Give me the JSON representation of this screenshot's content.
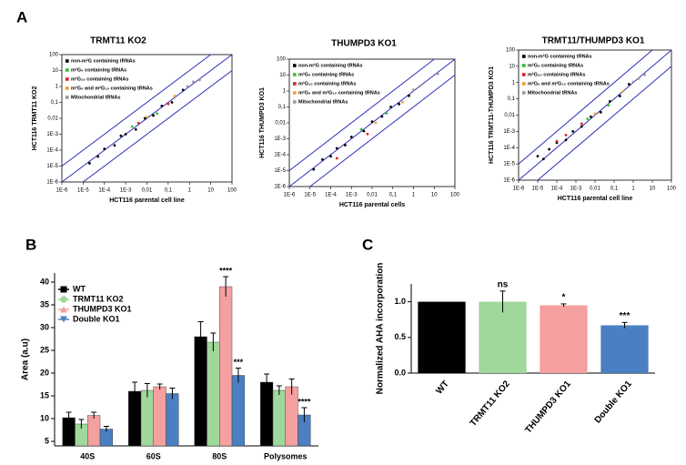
{
  "chart_data": [
    {
      "type": "scatter",
      "panel": "A",
      "title": "TRMT11 KO2",
      "title_color": "#8fd18a",
      "x_label": "HCT116 parental cell line",
      "y_label": "HCT116 TRMT11 KO2",
      "log_x": true,
      "log_y": true,
      "xlim": [
        1e-06,
        100
      ],
      "ylim": [
        1e-06,
        100
      ],
      "xticks": [
        {
          "value": 1e-06,
          "label": "1E-6"
        },
        {
          "value": 1e-05,
          "label": "1E-5"
        },
        {
          "value": 0.0001,
          "label": "1E-4"
        },
        {
          "value": 0.001,
          "label": "1E-3"
        },
        {
          "value": 0.01,
          "label": "0,01"
        },
        {
          "value": 0.1,
          "label": "0,1"
        },
        1,
        10,
        100
      ],
      "yticks": [
        {
          "value": 1e-06,
          "label": "1E-6"
        },
        {
          "value": 1e-05,
          "label": "1E-5"
        },
        {
          "value": 0.0001,
          "label": "1E-4"
        },
        {
          "value": 0.001,
          "label": "1E-3"
        },
        {
          "value": 0.01,
          "label": "0,01"
        },
        {
          "value": 0.1,
          "label": "0,1"
        },
        1,
        10,
        100
      ],
      "ref_lines": [
        0.1,
        1,
        10
      ],
      "ref_color": "#2b2fb8",
      "series": [
        {
          "name": "non-m²G containing tRNAs",
          "color": "#000000",
          "x": [
            2e-05,
            5e-05,
            0.0001,
            0.0003,
            0.0006,
            0.001,
            0.003,
            0.008,
            0.02,
            0.05,
            0.15,
            0.5
          ],
          "values": [
            1.5e-05,
            4e-05,
            0.00012,
            0.0002,
            0.0008,
            0.001,
            0.002,
            0.01,
            0.015,
            0.06,
            0.1,
            0.6
          ]
        },
        {
          "name": "m²G₆ containing tRNAs",
          "color": "#2fc02f",
          "x": [
            0.002,
            0.03
          ],
          "values": [
            0.003,
            0.02
          ]
        },
        {
          "name": "m²G₁₀ containing tRNAs",
          "color": "#e02020",
          "x": [
            0.004,
            0.1
          ],
          "values": [
            0.005,
            0.08
          ]
        },
        {
          "name": "m²G₆ and m²G₁₀ containing tRNAs",
          "color": "#f0a020",
          "x": [
            0.01,
            0.2
          ],
          "values": [
            0.012,
            0.25
          ]
        },
        {
          "name": "Mitochondrial tRNAs",
          "color": "#9a9a9a",
          "x": [
            0.8,
            1.5,
            3
          ],
          "values": [
            1,
            2,
            2.5
          ]
        }
      ]
    },
    {
      "type": "scatter",
      "title": "THUMPD3 KO1",
      "title_color": "#f29a9a",
      "x_label": "HCT116 parental cells",
      "y_label": "HCT116 THUMPD3 KO1",
      "log_x": true,
      "log_y": true,
      "xlim": [
        1e-06,
        100
      ],
      "ylim": [
        1e-06,
        100
      ],
      "xticks": [
        {
          "value": 1e-06,
          "label": "1E-6"
        },
        {
          "value": 1e-05,
          "label": "1E-5"
        },
        {
          "value": 0.0001,
          "label": "1E-4"
        },
        {
          "value": 0.001,
          "label": "1E-3"
        },
        {
          "value": 0.01,
          "label": "0,01"
        },
        {
          "value": 0.1,
          "label": "0,1"
        },
        1,
        10,
        100
      ],
      "yticks": [
        {
          "value": 1e-06,
          "label": "1E-6"
        },
        {
          "value": 1e-05,
          "label": "1E-5"
        },
        {
          "value": 0.0001,
          "label": "1E-4"
        },
        {
          "value": 0.001,
          "label": "1E-3"
        },
        {
          "value": 0.01,
          "label": "0,01"
        },
        {
          "value": 0.1,
          "label": "0,1"
        },
        1,
        10,
        100
      ],
      "ref_lines": [
        0.1,
        1,
        10
      ],
      "ref_color": "#2b2fb8",
      "series": [
        {
          "name": "non-m²G containing tRNAs",
          "color": "#000000",
          "x": [
            1.5e-05,
            4e-05,
            0.0001,
            0.0002,
            0.0005,
            0.001,
            0.004,
            0.01,
            0.03,
            0.08,
            0.2,
            0.6
          ],
          "values": [
            1.2e-05,
            5e-05,
            8e-05,
            0.00025,
            0.0004,
            0.0013,
            0.003,
            0.012,
            0.025,
            0.1,
            0.15,
            0.5
          ]
        },
        {
          "name": "m²G₆ containing tRNAs",
          "color": "#2fc02f",
          "x": [
            0.003,
            0.05
          ],
          "values": [
            0.004,
            0.04
          ]
        },
        {
          "name": "m²G₁₀ containing tRNAs",
          "color": "#e02020",
          "x": [
            0.0002,
            0.006
          ],
          "values": [
            6e-05,
            0.002
          ]
        },
        {
          "name": "m²G₆ and m²G₁₀ containing tRNAs",
          "color": "#f0a020",
          "x": [
            0.015,
            0.3
          ],
          "values": [
            0.01,
            0.2
          ]
        },
        {
          "name": "Mitochondrial tRNAs",
          "color": "#9a9a9a",
          "x": [
            1,
            2,
            15
          ],
          "values": [
            1.2,
            2,
            12
          ]
        }
      ]
    },
    {
      "type": "scatter",
      "title": "TRMT11/THUMPD3 KO1",
      "title_color": "#4a7fc1",
      "x_label": "HCT116 parental cell line",
      "y_label": "HCT116 TRMT11-THUMPD3 KO1",
      "log_x": true,
      "log_y": true,
      "xlim": [
        1e-06,
        100
      ],
      "ylim": [
        1e-06,
        100
      ],
      "xticks": [
        {
          "value": 1e-06,
          "label": "1E-6"
        },
        {
          "value": 1e-05,
          "label": "1E-5"
        },
        {
          "value": 0.0001,
          "label": "1E-4"
        },
        {
          "value": 0.001,
          "label": "1E-3"
        },
        {
          "value": 0.01,
          "label": "0,01"
        },
        {
          "value": 0.1,
          "label": "0,1"
        },
        1,
        10,
        100
      ],
      "yticks": [
        {
          "value": 1e-06,
          "label": "1E-6"
        },
        {
          "value": 1e-05,
          "label": "1E-5"
        },
        {
          "value": 0.0001,
          "label": "1E-4"
        },
        {
          "value": 0.001,
          "label": "1E-3"
        },
        {
          "value": 0.01,
          "label": "0,01"
        },
        {
          "value": 0.1,
          "label": "0,1"
        },
        1,
        10,
        100
      ],
      "ref_lines": [
        0.1,
        1,
        10
      ],
      "ref_color": "#2b2fb8",
      "series": [
        {
          "name": "non-m²G containing tRNAs",
          "color": "#000000",
          "x": [
            1e-05,
            2e-05,
            4e-05,
            0.0001,
            0.0003,
            0.0007,
            0.002,
            0.006,
            0.02,
            0.06,
            0.2,
            0.6
          ],
          "values": [
            3e-05,
            2e-05,
            8e-05,
            0.0002,
            0.0003,
            0.001,
            0.002,
            0.008,
            0.015,
            0.07,
            0.15,
            0.8
          ]
        },
        {
          "name": "m²G₆ containing tRNAs",
          "color": "#2fc02f",
          "x": [
            0.004,
            0.05
          ],
          "values": [
            0.006,
            0.04
          ]
        },
        {
          "name": "m²G₁₀ containing tRNAs",
          "color": "#e02020",
          "x": [
            0.0001,
            0.0003,
            0.002
          ],
          "values": [
            0.00025,
            0.0006,
            0.003
          ]
        },
        {
          "name": "m²G₆ and m²G₁₀ containing tRNAs",
          "color": "#f0a020",
          "x": [
            0.01,
            0.3
          ],
          "values": [
            0.012,
            0.3
          ]
        },
        {
          "name": "Mitochondrial tRNAs",
          "color": "#9a9a9a",
          "x": [
            1,
            2,
            4
          ],
          "values": [
            1.1,
            1.8,
            3
          ]
        }
      ]
    },
    {
      "type": "bar",
      "panel": "B",
      "y_label": "Area (a.u)",
      "ylim": [
        4,
        42
      ],
      "yticks": [
        5,
        10,
        15,
        20,
        25,
        30,
        35,
        40
      ],
      "categories": [
        "40S",
        "60S",
        "80S",
        "Polysomes"
      ],
      "series": [
        {
          "name": "WT",
          "color": "#000000",
          "marker": "square",
          "values": [
            10.2,
            16,
            28,
            18
          ],
          "errors": [
            1.2,
            2,
            3.3,
            1.8
          ],
          "significance": [
            null,
            null,
            null,
            null
          ]
        },
        {
          "name": "TRMT11 KO2",
          "color": "#9fd89a",
          "marker": "circle",
          "values": [
            8.8,
            16.2,
            26.8,
            16.2
          ],
          "errors": [
            1,
            1.5,
            2,
            1
          ]
        },
        {
          "name": "THUMPD3 KO1",
          "color": "#f4a0a0",
          "marker": "triangle-up",
          "values": [
            10.7,
            17,
            39,
            17
          ],
          "errors": [
            0.7,
            0.6,
            2.2,
            1.7
          ],
          "significance": [
            null,
            null,
            "****",
            null
          ]
        },
        {
          "name": "Double KO1",
          "color": "#4a7fc1",
          "marker": "triangle-down",
          "values": [
            7.7,
            15.5,
            19.5,
            10.8
          ],
          "errors": [
            0.6,
            1.2,
            1.6,
            1.6
          ],
          "significance": [
            null,
            null,
            "***",
            "****"
          ]
        }
      ]
    },
    {
      "type": "bar",
      "panel": "C",
      "y_label": "Normalized AHA incorporation",
      "ylim": [
        0,
        1.25
      ],
      "yticks": [
        {
          "value": 0,
          "label": "0.0"
        },
        {
          "value": 0.5,
          "label": "0.5"
        },
        {
          "value": 1,
          "label": "1.0"
        }
      ],
      "categories": [
        "WT",
        "TRMT11 KO2",
        "THUMPD3 KO1",
        "Double KO1"
      ],
      "colors": [
        "#000000",
        "#9fd89a",
        "#f4a0a0",
        "#4a7fc1"
      ],
      "values": [
        1,
        1,
        0.95,
        0.67
      ],
      "errors": [
        0,
        0.15,
        0.02,
        0.04
      ],
      "significance": [
        null,
        "ns",
        "*",
        "***"
      ]
    }
  ]
}
